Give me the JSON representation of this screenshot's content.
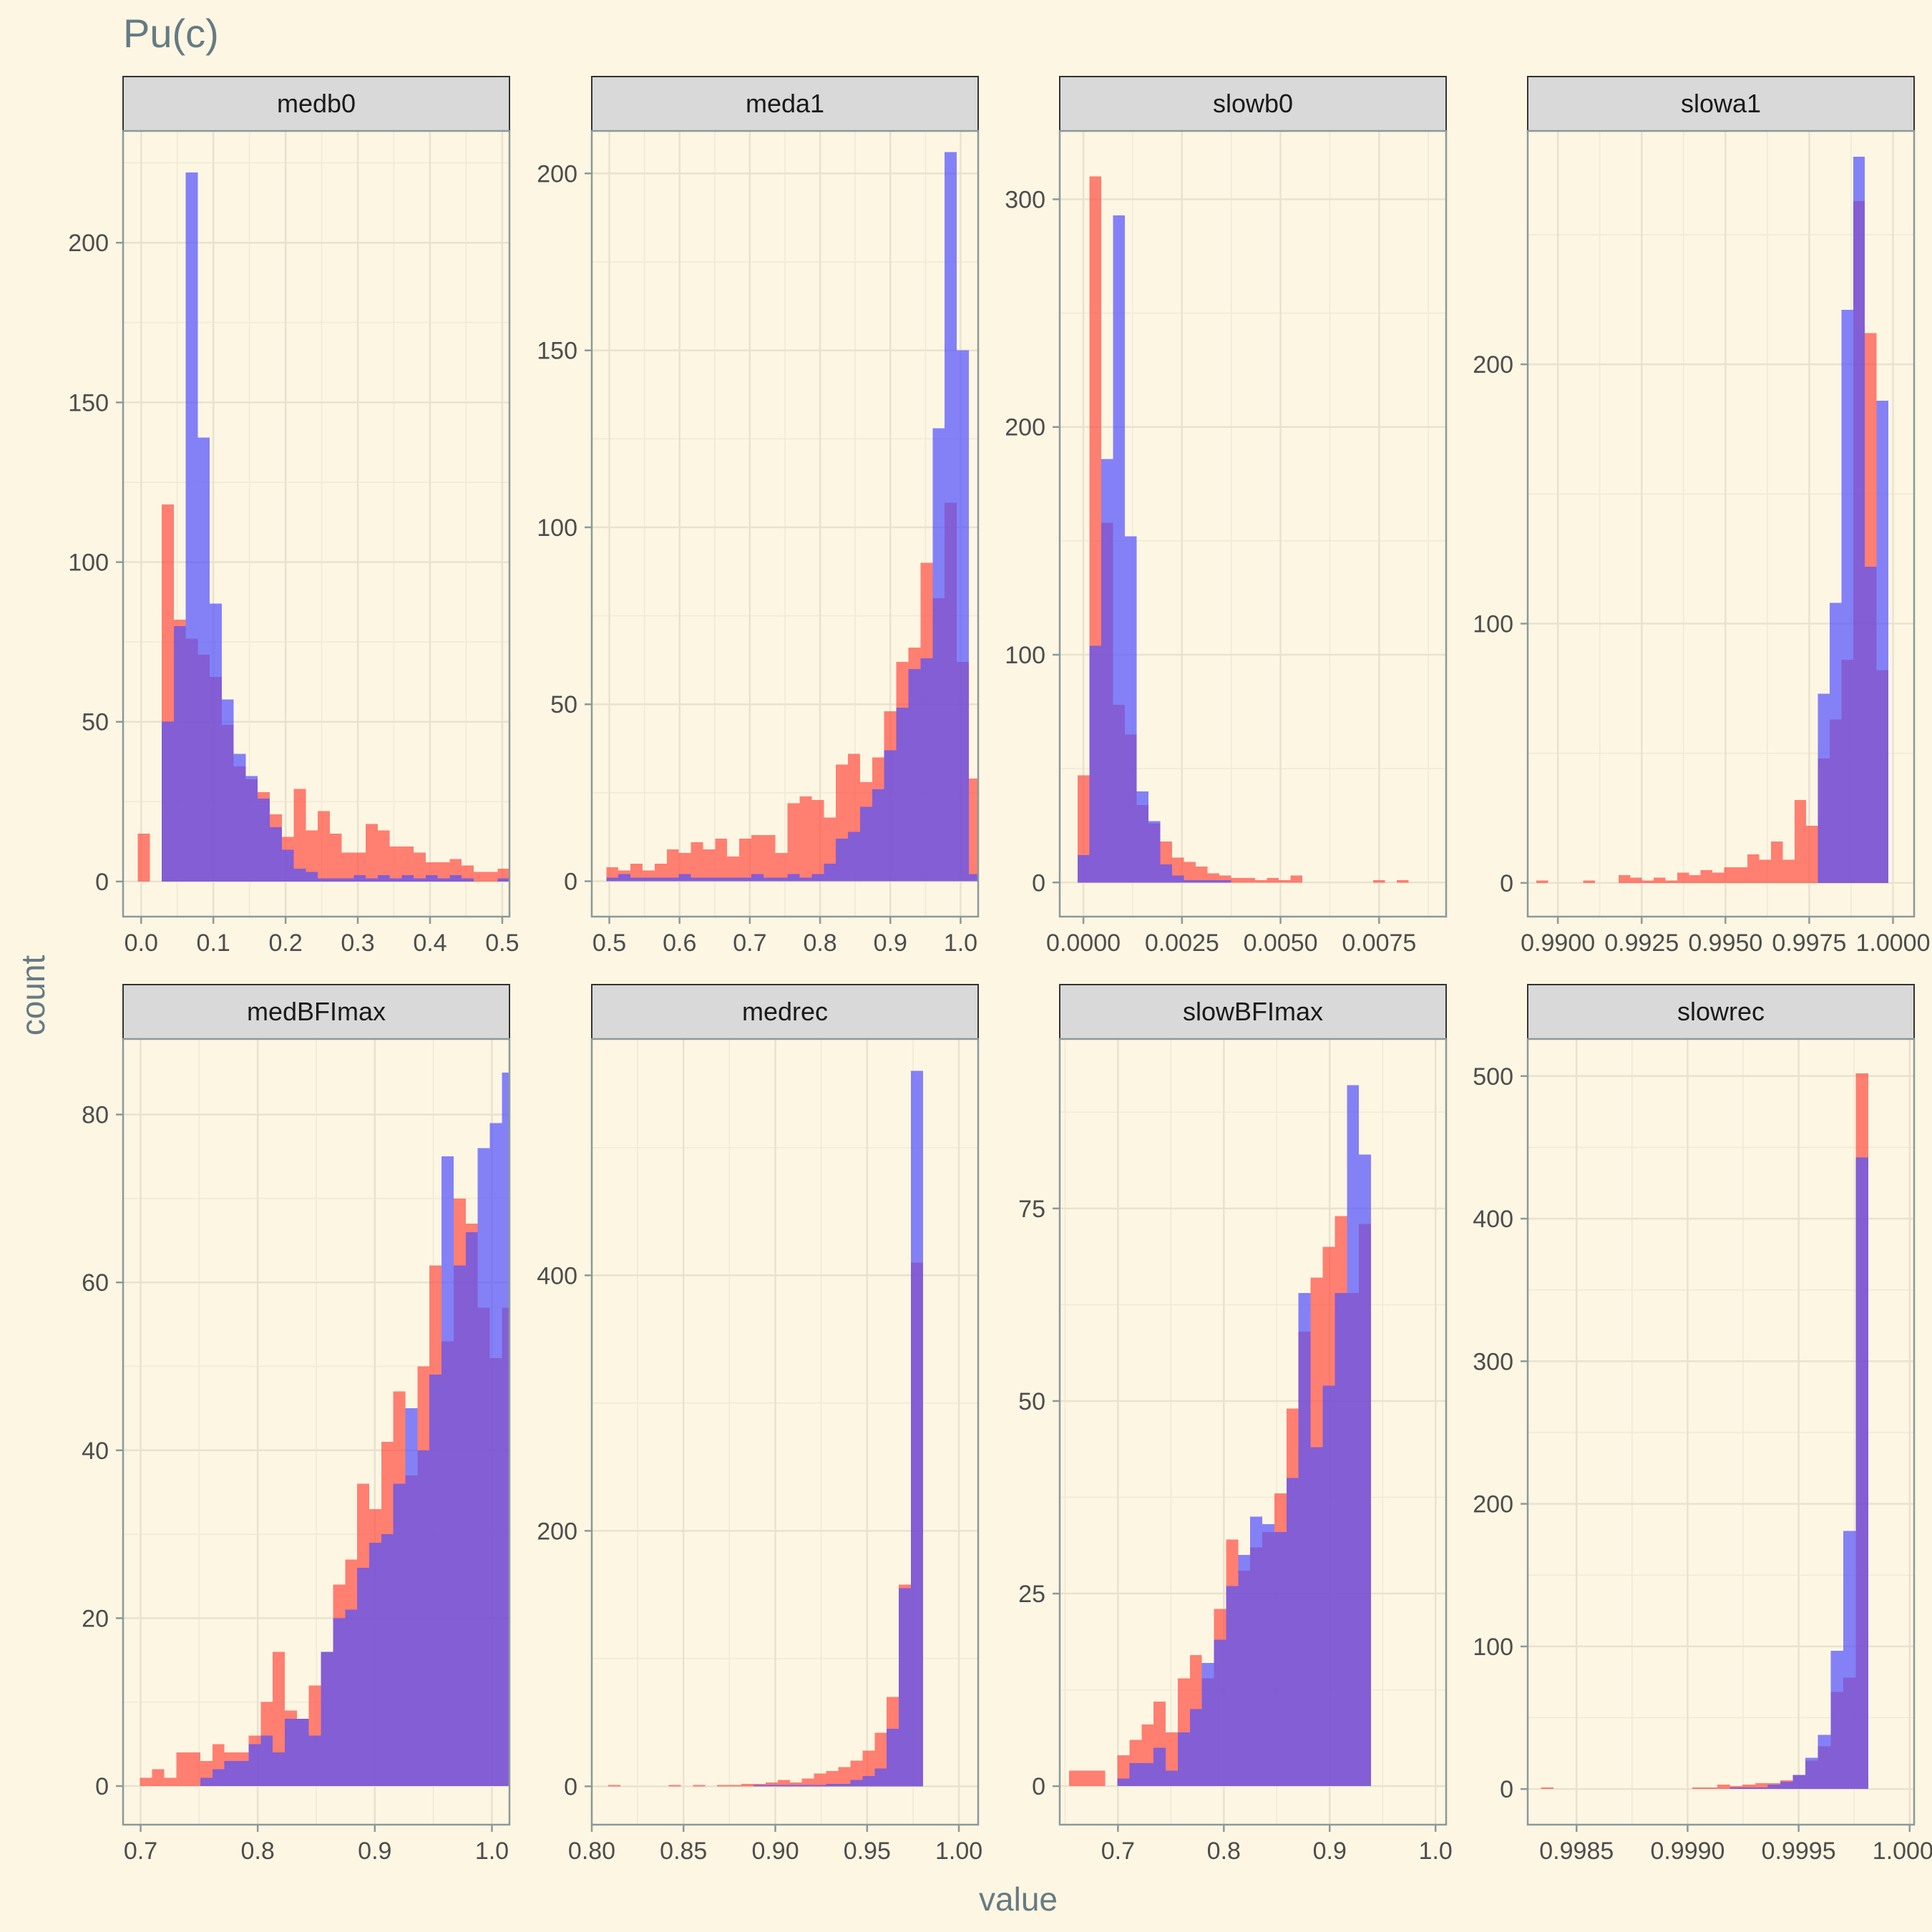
{
  "chart_data": {
    "type": "histogram-facets",
    "title": "Pu(c)",
    "xlabel": "value",
    "ylabel": "count",
    "colors": {
      "red": "#ff4d40",
      "blue": "#5050ff",
      "red_alpha": 0.7,
      "blue_alpha": 0.7,
      "background": "#fdf6e3",
      "strip_fill": "#d9d9d9",
      "grid": "#efe9d6"
    },
    "panels": [
      {
        "name": "medb0",
        "xlim": [
          -0.025,
          0.51
        ],
        "ylim": [
          -11,
          235
        ],
        "xticks": [
          0.0,
          0.1,
          0.2,
          0.3,
          0.4,
          0.5
        ],
        "xtick_labels": [
          "0.0",
          "0.1",
          "0.2",
          "0.3",
          "0.4",
          "0.5"
        ],
        "yticks": [
          0,
          50,
          100,
          150,
          200
        ],
        "ytick_labels": [
          "0",
          "50",
          "100",
          "150",
          "200"
        ],
        "x_start": -0.0045,
        "bin_width": 0.0166,
        "red": [
          15,
          0,
          118,
          82,
          76,
          71,
          64,
          49,
          36,
          32,
          28,
          21,
          14,
          29,
          16,
          22,
          15,
          9,
          9,
          18,
          16,
          11,
          11,
          9,
          6,
          6,
          7,
          5,
          3,
          3,
          4
        ],
        "blue": [
          0,
          0,
          50,
          80,
          222,
          139,
          87,
          57,
          40,
          33,
          26,
          17,
          10,
          4,
          3,
          1,
          1,
          1,
          2,
          1,
          2,
          1,
          2,
          1,
          2,
          1,
          2,
          1,
          0,
          0,
          1
        ]
      },
      {
        "name": "meda1",
        "xlim": [
          0.475,
          1.025
        ],
        "ylim": [
          -10,
          212
        ],
        "xticks": [
          0.5,
          0.6,
          0.7,
          0.8,
          0.9,
          1.0
        ],
        "xtick_labels": [
          "0.5",
          "0.6",
          "0.7",
          "0.8",
          "0.9",
          "1.0"
        ],
        "yticks": [
          0,
          50,
          100,
          150,
          200
        ],
        "ytick_labels": [
          "0",
          "50",
          "100",
          "150",
          "200"
        ],
        "x_start": 0.4957,
        "bin_width": 0.0172,
        "red": [
          4,
          3,
          5,
          3,
          5,
          9,
          8,
          11,
          9,
          12,
          7,
          12,
          13,
          13,
          8,
          22,
          24,
          23,
          18,
          33,
          36,
          28,
          35,
          48,
          62,
          66,
          90,
          80,
          107,
          62,
          29
        ],
        "blue": [
          1,
          2,
          1,
          1,
          1,
          1,
          2,
          1,
          1,
          1,
          1,
          1,
          2,
          1,
          1,
          2,
          1,
          2,
          5,
          12,
          14,
          21,
          26,
          37,
          49,
          60,
          63,
          128,
          206,
          150,
          2
        ]
      },
      {
        "name": "slowb0",
        "xlim": [
          -0.0006,
          0.0092
        ],
        "ylim": [
          -15,
          330
        ],
        "xticks": [
          0.0,
          0.0025,
          0.005,
          0.0075
        ],
        "xtick_labels": [
          "0.0000",
          "0.0025",
          "0.0050",
          "0.0075"
        ],
        "yticks": [
          0,
          100,
          200,
          300
        ],
        "ytick_labels": [
          "0",
          "100",
          "200",
          "300"
        ],
        "x_start": -0.00015,
        "bin_width": 0.0003,
        "red": [
          47,
          310,
          158,
          78,
          65,
          34,
          26,
          18,
          11,
          9,
          7,
          4,
          3,
          2,
          2,
          1,
          2,
          1,
          3,
          0,
          0,
          0,
          0,
          0,
          0,
          1,
          0,
          1
        ],
        "blue": [
          12,
          104,
          186,
          293,
          152,
          40,
          27,
          8,
          3,
          1,
          1,
          1,
          1,
          0,
          0,
          0,
          0,
          0,
          0,
          0,
          0,
          0,
          0,
          0,
          0,
          0,
          0,
          0
        ]
      },
      {
        "name": "slowa1",
        "xlim": [
          0.9891,
          1.00063
        ],
        "ylim": [
          -13,
          290
        ],
        "xticks": [
          0.99,
          0.9925,
          0.995,
          0.9975,
          1.0
        ],
        "xtick_labels": [
          "0.9900",
          "0.9925",
          "0.9950",
          "0.9975",
          "1.0000"
        ],
        "yticks": [
          0,
          100,
          200
        ],
        "ytick_labels": [
          "0",
          "100",
          "200"
        ],
        "x_start": 0.98936,
        "bin_width": 0.00035,
        "red": [
          1,
          0,
          0,
          0,
          1,
          0,
          0,
          3,
          2,
          1,
          2,
          1,
          4,
          3,
          5,
          4,
          6,
          6,
          11,
          9,
          16,
          9,
          32,
          22,
          48,
          63,
          86,
          263,
          212,
          82
        ],
        "blue": [
          0,
          0,
          0,
          0,
          0,
          0,
          0,
          0,
          0,
          0,
          0,
          0,
          0,
          0,
          0,
          0,
          0,
          0,
          0,
          0,
          0,
          0,
          0,
          0,
          73,
          108,
          221,
          280,
          122,
          186
        ]
      },
      {
        "name": "medBFImax",
        "xlim": [
          0.685,
          1.015
        ],
        "ylim": [
          -4.6,
          89
        ],
        "xticks": [
          0.7,
          0.8,
          0.9,
          1.0
        ],
        "xtick_labels": [
          "0.7",
          "0.8",
          "0.9",
          "1.0"
        ],
        "yticks": [
          0,
          20,
          40,
          60,
          80
        ],
        "ytick_labels": [
          "0",
          "20",
          "40",
          "60",
          "80"
        ],
        "x_start": 0.6995,
        "bin_width": 0.0103,
        "red": [
          1,
          2,
          1,
          4,
          4,
          3,
          5,
          4,
          4,
          6,
          10,
          16,
          9,
          8,
          12,
          16,
          24,
          27,
          36,
          33,
          41,
          47,
          37,
          50,
          62,
          53,
          70,
          67,
          57,
          51,
          57
        ],
        "blue": [
          0,
          0,
          0,
          0,
          0,
          1,
          2,
          3,
          3,
          5,
          6,
          4,
          8,
          8,
          6,
          16,
          20,
          21,
          26,
          29,
          30,
          36,
          45,
          40,
          49,
          75,
          62,
          66,
          76,
          79,
          85
        ]
      },
      {
        "name": "medrec",
        "xlim": [
          0.8,
          1.0105
        ],
        "ylim": [
          -30,
          585
        ],
        "xticks": [
          0.8,
          0.85,
          0.9,
          0.95,
          1.0
        ],
        "xtick_labels": [
          "0.80",
          "0.85",
          "0.90",
          "0.95",
          "1.00"
        ],
        "yticks": [
          0,
          200,
          400
        ],
        "ytick_labels": [
          "0",
          "200",
          "400"
        ],
        "x_start": 0.8089,
        "bin_width": 0.0066,
        "red": [
          1,
          0,
          0,
          0,
          0,
          1,
          0,
          1,
          0,
          1,
          1,
          2,
          2,
          3,
          5,
          3,
          6,
          10,
          12,
          15,
          20,
          28,
          42,
          70,
          158,
          410
        ],
        "blue": [
          0,
          0,
          0,
          0,
          0,
          0,
          0,
          0,
          0,
          0,
          0,
          0,
          1,
          1,
          1,
          1,
          1,
          1,
          2,
          2,
          5,
          8,
          14,
          45,
          155,
          560
        ]
      },
      {
        "name": "slowBFImax",
        "xlim": [
          0.645,
          1.01
        ],
        "ylim": [
          -5,
          97
        ],
        "xticks": [
          0.7,
          0.8,
          0.9,
          1.0
        ],
        "xtick_labels": [
          "0.7",
          "0.8",
          "0.9",
          "1.0"
        ],
        "yticks": [
          0,
          25,
          50,
          75
        ],
        "ytick_labels": [
          "0",
          "25",
          "50",
          "75"
        ],
        "x_start": 0.6538,
        "bin_width": 0.01141,
        "red": [
          2,
          2,
          2,
          0,
          4,
          6,
          8,
          11,
          7,
          14,
          17,
          14,
          23,
          32,
          28,
          31,
          33,
          38,
          49,
          59,
          66,
          70,
          74,
          64,
          73
        ],
        "blue": [
          0,
          0,
          0,
          0,
          1,
          3,
          3,
          5,
          2,
          7,
          10,
          16,
          19,
          26,
          30,
          35,
          34,
          33,
          40,
          64,
          44,
          52,
          64,
          91,
          82
        ]
      },
      {
        "name": "slowrec",
        "xlim": [
          0.99828,
          1.00002
        ],
        "ylim": [
          -25,
          526
        ],
        "xticks": [
          0.9985,
          0.999,
          0.9995,
          1.0
        ],
        "xtick_labels": [
          "0.9985",
          "0.9990",
          "0.9995",
          "1.0000"
        ],
        "yticks": [
          0,
          100,
          200,
          300,
          400,
          500
        ],
        "ytick_labels": [
          "0",
          "100",
          "200",
          "300",
          "400",
          "500"
        ],
        "x_start": 0.99834,
        "bin_width": 5.67e-05,
        "red": [
          1,
          0,
          0,
          0,
          0,
          0,
          0,
          0,
          0,
          0,
          0,
          0,
          1,
          1,
          3,
          2,
          3,
          4,
          4,
          6,
          10,
          20,
          30,
          68,
          78,
          502
        ],
        "blue": [
          0,
          0,
          0,
          0,
          0,
          0,
          0,
          0,
          0,
          0,
          0,
          0,
          0,
          0,
          0,
          1,
          1,
          1,
          3,
          5,
          10,
          22,
          38,
          97,
          181,
          443
        ]
      }
    ]
  }
}
